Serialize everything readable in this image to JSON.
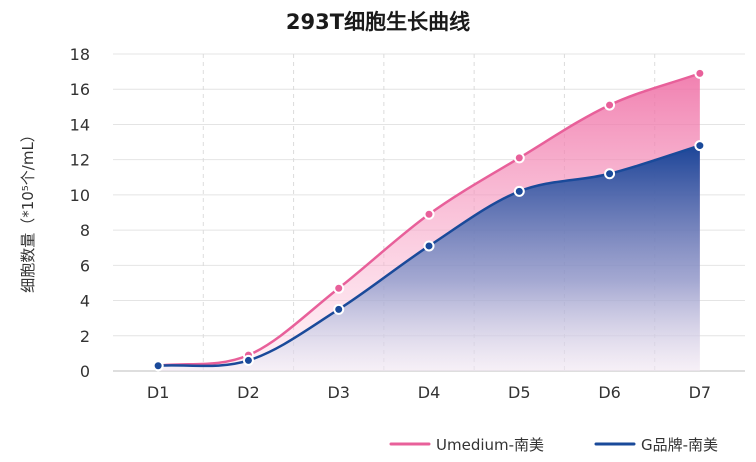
{
  "chart_data": {
    "type": "area",
    "title": "293T细胞生长曲线",
    "xlabel": "",
    "ylabel": "细胞数量（*10⁵个/mL）",
    "categories": [
      "D1",
      "D2",
      "D3",
      "D4",
      "D5",
      "D6",
      "D7"
    ],
    "ylim": [
      0,
      18
    ],
    "yticks": [
      0,
      2,
      4,
      6,
      8,
      10,
      12,
      14,
      16,
      18
    ],
    "grid": true,
    "legend_position": "bottom-right",
    "series": [
      {
        "name": "Umedium-南美",
        "values": [
          0.3,
          0.9,
          4.7,
          8.9,
          12.1,
          15.1,
          16.9
        ],
        "color": "#e8609a"
      },
      {
        "name": "G品牌-南美",
        "values": [
          0.3,
          0.6,
          3.5,
          7.1,
          10.2,
          11.2,
          12.8
        ],
        "color": "#1a4a9a"
      }
    ]
  }
}
